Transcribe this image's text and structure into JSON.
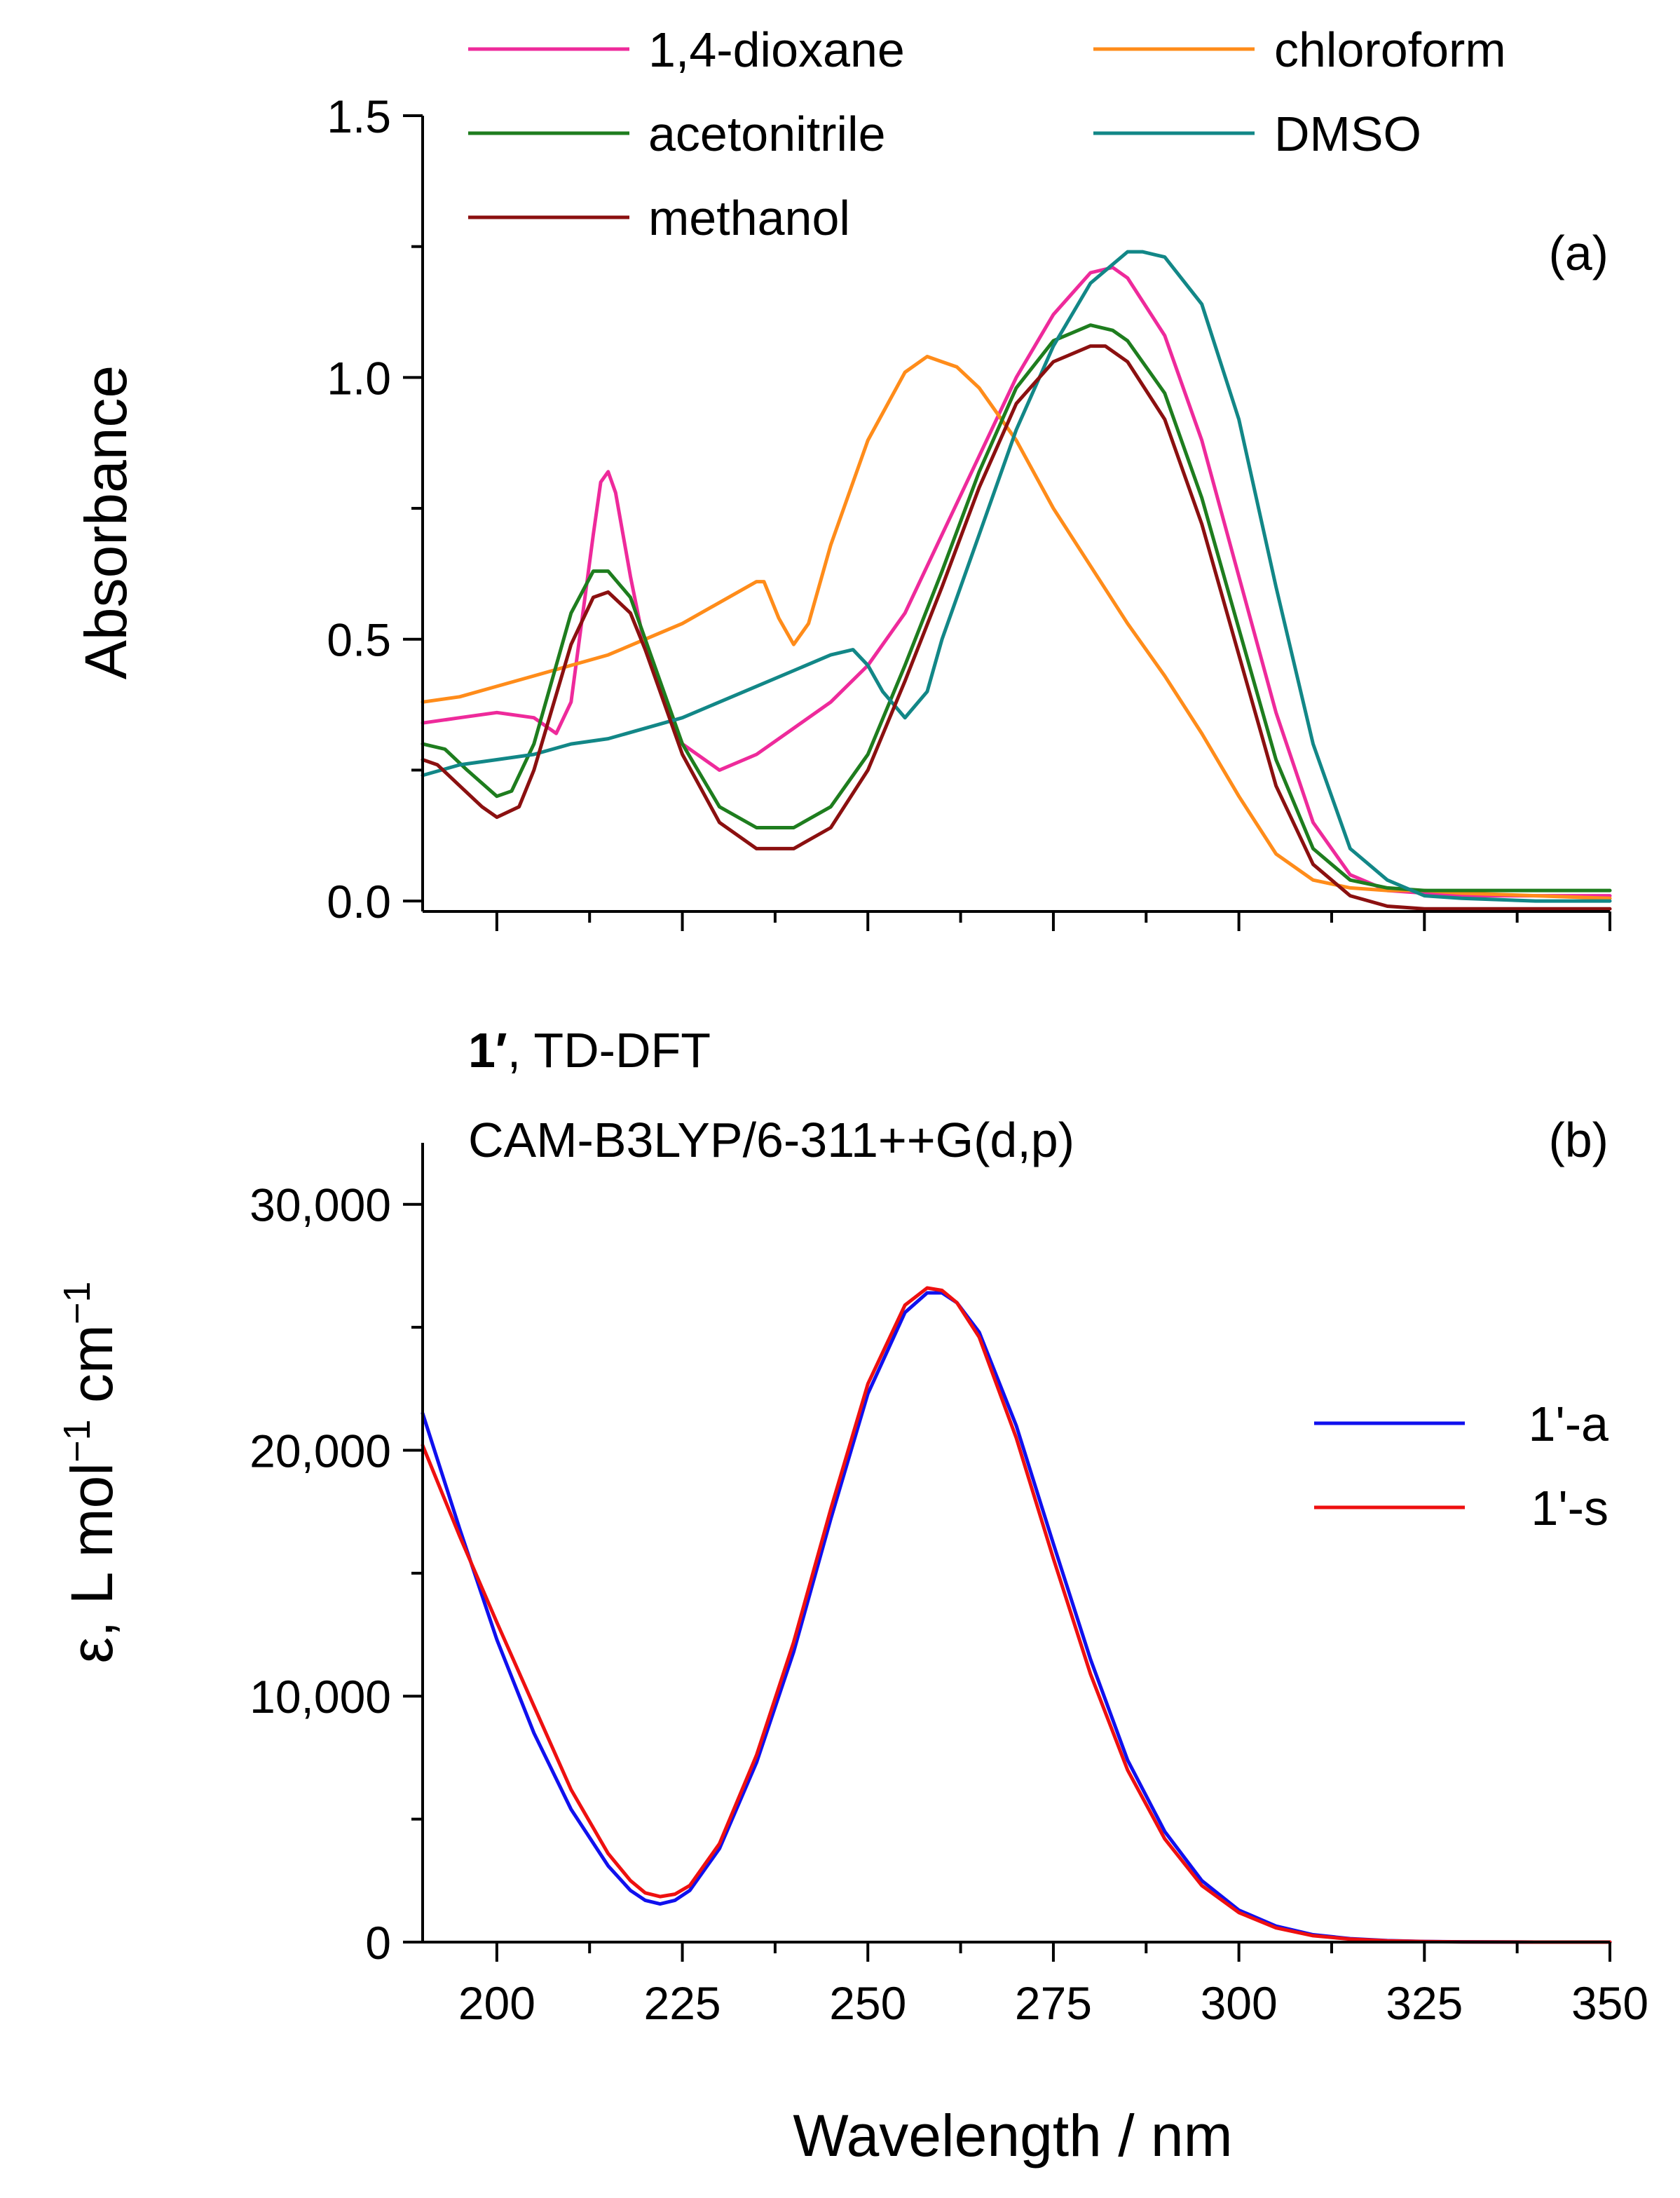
{
  "figure": {
    "xlabel": "Wavelength / nm",
    "x_tick_labels": [
      "200",
      "225",
      "250",
      "275",
      "300",
      "325",
      "350"
    ]
  },
  "chart_data": [
    {
      "type": "line",
      "panel": "a",
      "panel_label": "(a)",
      "title": "",
      "xlabel": "Wavelength / nm",
      "ylabel": "Absorbance",
      "xlim": [
        190,
        350
      ],
      "ylim": [
        -0.02,
        1.5
      ],
      "y_ticks": [
        0.0,
        0.5,
        1.0,
        1.5
      ],
      "y_tick_labels": [
        "0.0",
        "0.5",
        "1.0",
        "1.5"
      ],
      "legend": "top, two columns",
      "series": [
        {
          "name": "1,4-dioxane",
          "color": "#ee2a9b",
          "x": [
            190,
            195,
            200,
            205,
            208,
            210,
            213,
            214,
            215,
            216,
            218,
            220,
            225,
            230,
            235,
            240,
            245,
            250,
            255,
            260,
            265,
            270,
            275,
            280,
            283,
            285,
            290,
            295,
            300,
            305,
            310,
            315,
            320,
            325,
            330,
            340,
            350
          ],
          "y": [
            0.34,
            0.35,
            0.36,
            0.35,
            0.32,
            0.38,
            0.7,
            0.8,
            0.82,
            0.78,
            0.62,
            0.48,
            0.3,
            0.25,
            0.28,
            0.33,
            0.38,
            0.45,
            0.55,
            0.7,
            0.85,
            1.0,
            1.12,
            1.2,
            1.21,
            1.19,
            1.08,
            0.88,
            0.62,
            0.36,
            0.15,
            0.05,
            0.02,
            0.015,
            0.01,
            0.01,
            0.01
          ]
        },
        {
          "name": "chloroform",
          "color": "#ff8c1a",
          "x": [
            190,
            195,
            200,
            205,
            210,
            215,
            220,
            225,
            230,
            235,
            236,
            238,
            240,
            242,
            245,
            250,
            255,
            258,
            260,
            262,
            265,
            270,
            275,
            280,
            285,
            290,
            295,
            300,
            305,
            310,
            315,
            320,
            325,
            330,
            340,
            350
          ],
          "y": [
            0.38,
            0.39,
            0.41,
            0.43,
            0.45,
            0.47,
            0.5,
            0.53,
            0.57,
            0.61,
            0.61,
            0.54,
            0.49,
            0.53,
            0.68,
            0.88,
            1.01,
            1.04,
            1.03,
            1.02,
            0.98,
            0.88,
            0.75,
            0.64,
            0.53,
            0.43,
            0.32,
            0.2,
            0.09,
            0.04,
            0.025,
            0.02,
            0.02,
            0.015,
            0.01,
            0.005
          ]
        },
        {
          "name": "acetonitrile",
          "color": "#1e7d1e",
          "x": [
            190,
            193,
            196,
            200,
            202,
            205,
            210,
            213,
            215,
            218,
            220,
            225,
            230,
            235,
            240,
            245,
            250,
            255,
            260,
            265,
            270,
            275,
            280,
            283,
            285,
            290,
            295,
            300,
            305,
            310,
            315,
            320,
            325,
            330,
            340,
            350
          ],
          "y": [
            0.3,
            0.29,
            0.25,
            0.2,
            0.21,
            0.3,
            0.55,
            0.63,
            0.63,
            0.58,
            0.5,
            0.3,
            0.18,
            0.14,
            0.14,
            0.18,
            0.28,
            0.45,
            0.63,
            0.82,
            0.98,
            1.07,
            1.1,
            1.09,
            1.07,
            0.97,
            0.77,
            0.52,
            0.27,
            0.1,
            0.04,
            0.025,
            0.02,
            0.02,
            0.02,
            0.02
          ]
        },
        {
          "name": "DMSO",
          "color": "#128787",
          "x": [
            190,
            195,
            200,
            205,
            210,
            215,
            220,
            225,
            230,
            235,
            240,
            245,
            248,
            250,
            252,
            255,
            258,
            260,
            265,
            270,
            275,
            280,
            285,
            287,
            290,
            295,
            300,
            305,
            310,
            315,
            320,
            325,
            330,
            340,
            350
          ],
          "y": [
            0.24,
            0.26,
            0.27,
            0.28,
            0.3,
            0.31,
            0.33,
            0.35,
            0.38,
            0.41,
            0.44,
            0.47,
            0.48,
            0.45,
            0.4,
            0.35,
            0.4,
            0.5,
            0.7,
            0.9,
            1.06,
            1.18,
            1.24,
            1.24,
            1.23,
            1.14,
            0.92,
            0.6,
            0.3,
            0.1,
            0.04,
            0.01,
            0.005,
            0.0,
            0.0
          ]
        },
        {
          "name": "methanol",
          "color": "#8b1010",
          "x": [
            190,
            192,
            195,
            198,
            200,
            203,
            205,
            210,
            213,
            215,
            218,
            220,
            225,
            230,
            235,
            240,
            245,
            250,
            255,
            260,
            265,
            270,
            275,
            280,
            282,
            285,
            290,
            295,
            300,
            305,
            310,
            315,
            320,
            325,
            330,
            340,
            350
          ],
          "y": [
            0.27,
            0.26,
            0.22,
            0.18,
            0.16,
            0.18,
            0.25,
            0.49,
            0.58,
            0.59,
            0.55,
            0.48,
            0.28,
            0.15,
            0.1,
            0.1,
            0.14,
            0.25,
            0.42,
            0.6,
            0.79,
            0.95,
            1.03,
            1.06,
            1.06,
            1.03,
            0.92,
            0.72,
            0.47,
            0.22,
            0.07,
            0.01,
            -0.01,
            -0.015,
            -0.015,
            -0.015,
            -0.015
          ]
        }
      ]
    },
    {
      "type": "line",
      "panel": "b",
      "panel_label": "(b)",
      "title_bold": "1′",
      "title_rest": ", TD-DFT",
      "subtitle": "CAM-B3LYP/6-311++G(d,p)",
      "xlabel": "Wavelength / nm",
      "ylabel_parts": [
        "ε, L mol",
        "−1",
        " cm",
        "−1"
      ],
      "xlim": [
        190,
        350
      ],
      "ylim": [
        0,
        32500
      ],
      "y_ticks": [
        0,
        10000,
        20000,
        30000
      ],
      "y_tick_labels": [
        "0",
        "10,000",
        "20,000",
        "30,000"
      ],
      "legend": "right-middle",
      "series": [
        {
          "name": "1'-a",
          "color": "#1010ee",
          "x": [
            190,
            195,
            200,
            205,
            210,
            215,
            218,
            220,
            222,
            224,
            226,
            230,
            235,
            240,
            245,
            250,
            255,
            258,
            260,
            262,
            265,
            270,
            275,
            280,
            285,
            290,
            295,
            300,
            305,
            310,
            315,
            320,
            325,
            330,
            340,
            350
          ],
          "y": [
            21500,
            16800,
            12300,
            8500,
            5400,
            3100,
            2100,
            1700,
            1550,
            1700,
            2100,
            3800,
            7300,
            11800,
            17200,
            22300,
            25600,
            26400,
            26400,
            26000,
            24800,
            21000,
            16200,
            11500,
            7400,
            4500,
            2500,
            1300,
            650,
            300,
            140,
            60,
            25,
            10,
            0,
            0
          ]
        },
        {
          "name": "1'-s",
          "color": "#ee1010",
          "x": [
            190,
            195,
            200,
            205,
            210,
            215,
            218,
            220,
            222,
            224,
            226,
            230,
            235,
            240,
            245,
            250,
            255,
            258,
            260,
            262,
            265,
            270,
            275,
            280,
            285,
            290,
            295,
            300,
            305,
            310,
            315,
            320,
            325,
            330,
            340,
            350
          ],
          "y": [
            20200,
            16500,
            13000,
            9600,
            6200,
            3600,
            2500,
            2000,
            1850,
            1950,
            2300,
            4000,
            7600,
            12200,
            17600,
            22700,
            25900,
            26600,
            26500,
            26000,
            24600,
            20500,
            15600,
            10900,
            7000,
            4200,
            2300,
            1200,
            580,
            260,
            120,
            50,
            20,
            8,
            0,
            0
          ]
        }
      ]
    }
  ]
}
